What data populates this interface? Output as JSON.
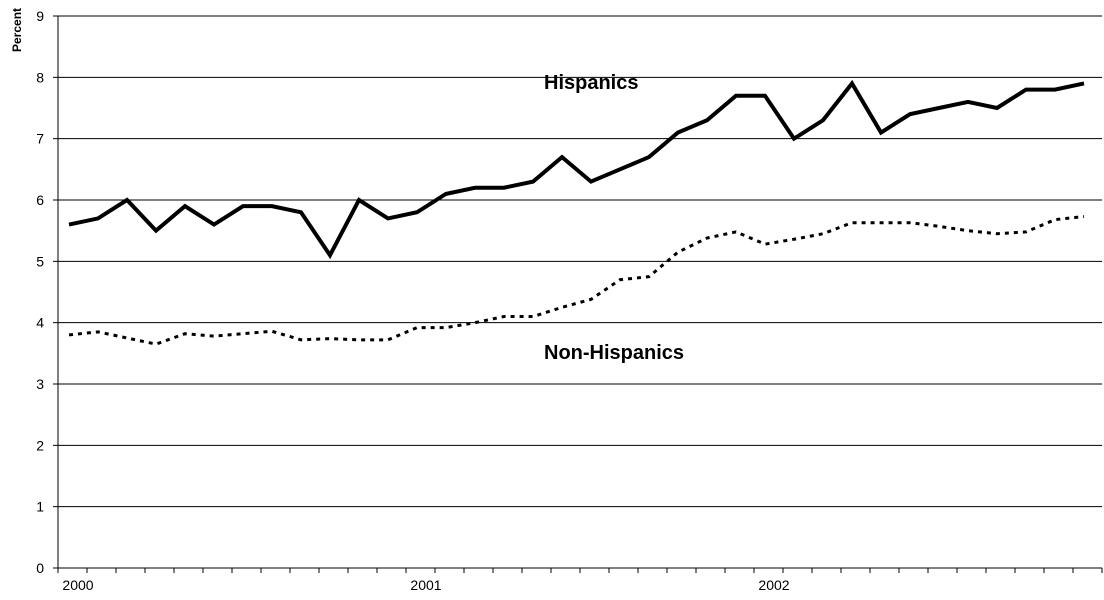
{
  "chart_data": {
    "type": "line",
    "ylabel": "Percent",
    "ylim": [
      0,
      9
    ],
    "yticks": [
      0,
      1,
      2,
      3,
      4,
      5,
      6,
      7,
      8,
      9
    ],
    "grid": true,
    "x_tick_labels": [
      "2000",
      "2001",
      "2002"
    ],
    "x_tick_positions": [
      0,
      12,
      24
    ],
    "x_month_count": 36,
    "series": [
      {
        "name": "Hispanics",
        "style": "solid",
        "color": "#000000",
        "values": [
          5.6,
          5.7,
          6.0,
          5.5,
          5.9,
          5.6,
          5.9,
          5.9,
          5.8,
          5.1,
          6.0,
          5.7,
          5.8,
          6.1,
          6.2,
          6.2,
          6.3,
          6.7,
          6.3,
          6.5,
          6.7,
          7.1,
          7.3,
          7.7,
          7.7,
          7.0,
          7.3,
          7.9,
          7.1,
          7.4,
          7.5,
          7.6,
          7.5,
          7.8,
          7.8,
          7.9
        ]
      },
      {
        "name": "Non-Hispanics",
        "style": "dotted",
        "color": "#000000",
        "values": [
          3.8,
          3.85,
          3.75,
          3.65,
          3.82,
          3.78,
          3.82,
          3.86,
          3.72,
          3.74,
          3.72,
          3.72,
          3.92,
          3.92,
          4.0,
          4.1,
          4.1,
          4.25,
          4.38,
          4.7,
          4.75,
          5.15,
          5.38,
          5.48,
          5.28,
          5.36,
          5.45,
          5.63,
          5.63,
          5.63,
          5.57,
          5.5,
          5.45,
          5.48,
          5.68,
          5.73
        ]
      }
    ]
  }
}
